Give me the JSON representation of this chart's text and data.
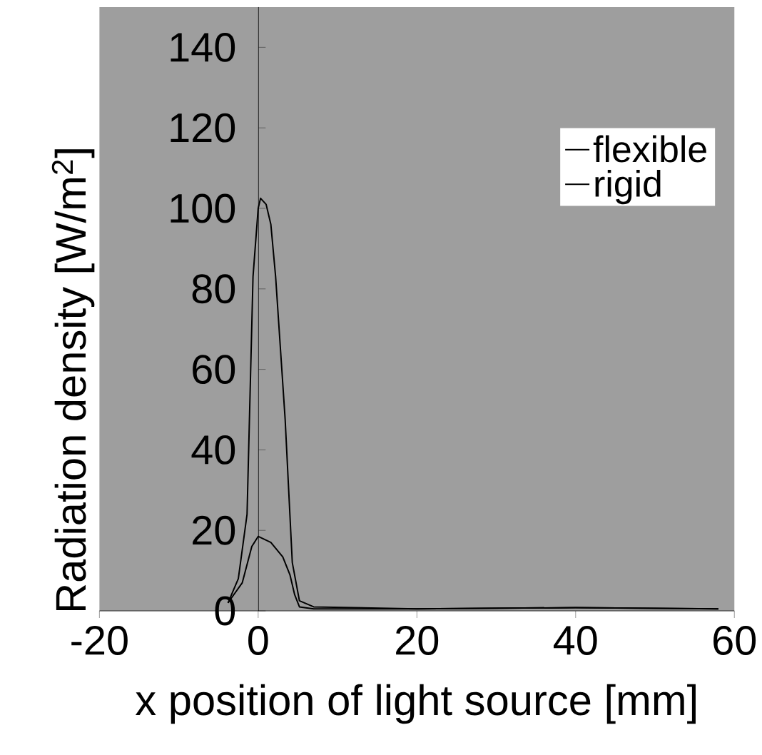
{
  "chart_data": {
    "type": "line",
    "xlabel": "x position of light source [mm]",
    "ylabel": "Radiation density [W/m$^{2}$]",
    "xlim": [
      -20,
      60
    ],
    "ylim": [
      0,
      150
    ],
    "xticks": [
      -20,
      0,
      20,
      40,
      60
    ],
    "yticks": [
      0,
      20,
      40,
      60,
      80,
      100,
      120,
      140
    ],
    "legend": "top right",
    "grid": false,
    "marker": "none",
    "line_style": "solid",
    "series": [
      {
        "name": "flexible",
        "color": "#000000",
        "x": [
          -3.8,
          -2.5,
          -1.4,
          -0.65,
          0,
          0.3,
          1,
          1.6,
          2.2,
          3.4,
          4.3,
          5.2,
          7,
          20,
          40,
          58
        ],
        "values": [
          2,
          8,
          24,
          83,
          100,
          102.5,
          101,
          96,
          83,
          47.6,
          12,
          2.5,
          1,
          0.5,
          0.8,
          0.5
        ]
      },
      {
        "name": "rigid",
        "color": "#000000",
        "x": [
          -3.8,
          -2,
          -0.8,
          0,
          1.6,
          3.1,
          4,
          4.6,
          5.2,
          7,
          20,
          40,
          58
        ],
        "values": [
          2,
          7,
          16,
          18.5,
          17,
          13.4,
          9,
          4,
          1,
          0.5,
          0.5,
          0.8,
          0.5
        ]
      }
    ]
  }
}
